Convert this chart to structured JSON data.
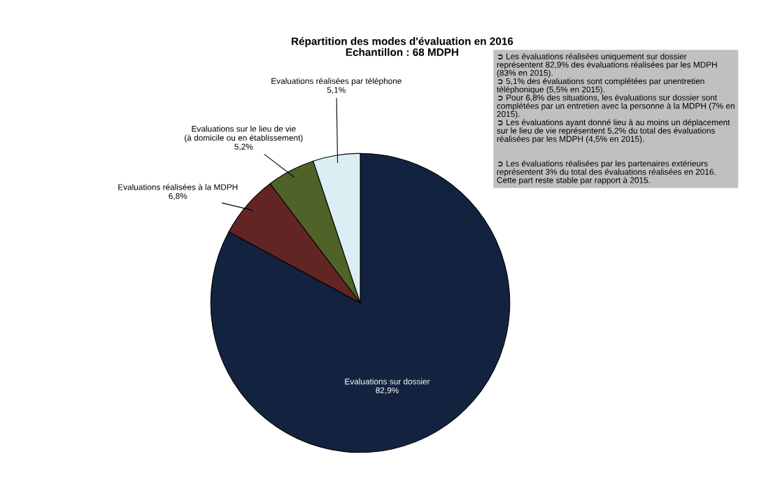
{
  "chart_data": {
    "type": "pie",
    "title": "Répartition des modes d'évaluation en 2016",
    "subtitle": "Echantillon : 68 MDPH",
    "categories": [
      "Evaluations sur dossier",
      "Evaluations réalisées à la MDPH",
      "Evaluations sur le lieu de vie\n(à domicile ou en établissement)",
      "Evaluations réalisées par téléphone"
    ],
    "values": [
      82.9,
      6.8,
      5.2,
      5.1
    ],
    "value_labels": [
      "82,9%",
      "6,8%",
      "5,2%",
      "5,1%"
    ],
    "colors": [
      "#13233f",
      "#632523",
      "#4f6228",
      "#dbeef4"
    ],
    "legend": false,
    "annotations": [
      "➲ Les évaluations réalisées uniquement sur dossier\nreprésentent 82,9% des évaluations réalisées par les MDPH\n(83% en 2015).\n➲ 5,1% des évaluations sont complétées par unentretien\ntéléphonique (5,5% en 2015).\n➲ Pour 6,8% des situations, les évaluations sur dossier sont\ncomplétées par un entretien avec la personne à la MDPH (7% en\n2015).\n➲ Les évaluations ayant donné lieu à au moins un déplacement\nsur le lieu de vie représentent 5,2% du total des évaluations\nréalisées par les MDPH (4,5% en 2015).\n\n\n➲ Les évaluations réalisées par les partenaires extérieurs\nreprésentent 3% du total des évaluations réalisées en 2016.\nCette part reste stable par rapport à 2015."
    ]
  }
}
